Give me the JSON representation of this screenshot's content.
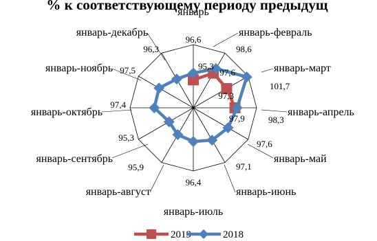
{
  "chart_data": {
    "type": "radar",
    "title": "% к соответствующему периоду предыдущ",
    "categories": [
      "январь",
      "январь-февраль",
      "январь-март",
      "январь-апрель",
      "январь-май",
      "январь-июнь",
      "январь-июль",
      "январь-август",
      "январь-сентябрь",
      "январь-октябрь",
      "январь-ноябрь",
      "январь-декабрь"
    ],
    "series": [
      {
        "name": "2019",
        "color": "#c0504d",
        "marker": "square",
        "values": [
          95.3,
          97.6,
          97.3,
          97.9,
          null,
          null,
          null,
          null,
          null,
          null,
          null,
          null
        ],
        "labels": [
          "95,3",
          "97,6",
          "97,3",
          "97,9"
        ]
      },
      {
        "name": "2018",
        "color": "#4f81bd",
        "marker": "diamond",
        "values": [
          96.6,
          98.6,
          101.7,
          98.3,
          97.6,
          97.1,
          96.4,
          95.9,
          95.3,
          97.4,
          97.5,
          96.3
        ],
        "labels": [
          "96,6",
          "98,6",
          "101,7",
          "98,3",
          "97,6",
          "97,1",
          "96,4",
          "95,9",
          "95,3",
          "97,4",
          "97,5",
          "96,3"
        ]
      }
    ],
    "rlim": [
      90,
      102
    ],
    "grid": true,
    "legend": "bottom"
  }
}
